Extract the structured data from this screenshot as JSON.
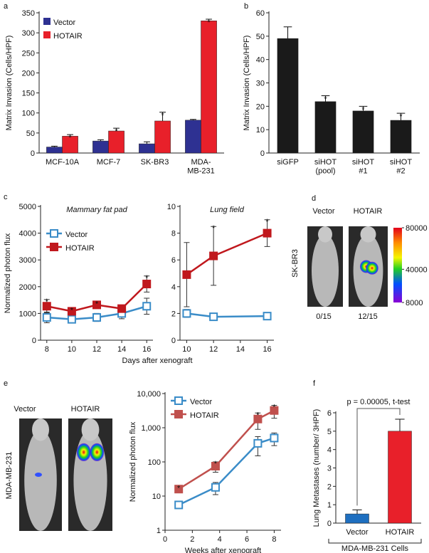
{
  "chart_data": [
    {
      "panel": "a",
      "type": "bar",
      "categories": [
        "MCF-10A",
        "MCF-7",
        "SK-BR3",
        "MDA-\nMB-231"
      ],
      "ylabel": "Matrix Invasion (Cells/HPF)",
      "ylim": [
        0,
        350
      ],
      "yticks": [
        0,
        50,
        100,
        150,
        200,
        250,
        300,
        350
      ],
      "legend": "upper left",
      "series": [
        {
          "name": "Vector",
          "color": "#2e3192",
          "values": [
            15,
            30,
            23,
            82
          ],
          "errors": [
            2,
            3,
            5,
            2
          ]
        },
        {
          "name": "HOTAIR",
          "color": "#e8202a",
          "values": [
            42,
            55,
            80,
            330
          ],
          "errors": [
            4,
            7,
            22,
            4
          ],
          "markers": [
            "*",
            "*",
            "*",
            "*"
          ]
        }
      ]
    },
    {
      "panel": "b",
      "type": "bar",
      "categories": [
        "siGFP",
        "siHOT\n(pool)",
        "siHOT\n#1",
        "siHOT\n#2"
      ],
      "ylabel": "Matrix Invasion (Cells/HPF)",
      "ylim": [
        0,
        60
      ],
      "yticks": [
        0,
        10,
        20,
        30,
        40,
        50,
        60
      ],
      "color": "#1a1a1a",
      "values": [
        49,
        22,
        18,
        14
      ],
      "errors": [
        5,
        2.5,
        2,
        3
      ],
      "markers": [
        null,
        "*",
        "*",
        "*"
      ]
    },
    {
      "panel": "c",
      "type": "line",
      "title": "Mammary fat pad",
      "xlabel": "Days after xenograft",
      "ylabel": "Normalized photon flux",
      "x": [
        8,
        10,
        12,
        14,
        16
      ],
      "xlim": [
        7.5,
        16.5
      ],
      "xticks": [
        8,
        10,
        12,
        14,
        16
      ],
      "ylim": [
        0,
        5000
      ],
      "yticks": [
        0,
        1000,
        2000,
        3000,
        4000,
        5000
      ],
      "legend": "upper left",
      "series": [
        {
          "name": "Vector",
          "color": "#3a8cc8",
          "filled": false,
          "values": [
            850,
            780,
            850,
            1000,
            1270
          ],
          "errors": [
            200,
            100,
            150,
            200,
            300
          ]
        },
        {
          "name": "HOTAIR",
          "color": "#c0181d",
          "filled": true,
          "values": [
            1270,
            1080,
            1320,
            1180,
            2100
          ],
          "errors": [
            250,
            100,
            100,
            80,
            300
          ],
          "markers": [
            "*",
            "*",
            "*",
            null,
            "*"
          ]
        }
      ]
    },
    {
      "type": "line",
      "title": "Lung field",
      "x": [
        10,
        12,
        16
      ],
      "xlim": [
        9.5,
        16.5
      ],
      "xticks": [
        10,
        12,
        14,
        16
      ],
      "ylim": [
        0,
        10
      ],
      "yticks": [
        0,
        2,
        4,
        6,
        8,
        10
      ],
      "series": [
        {
          "color": "#3a8cc8",
          "filled": false,
          "values": [
            2,
            1.75,
            1.8
          ],
          "errors": [
            0.3,
            0.1,
            0.1
          ]
        },
        {
          "color": "#c0181d",
          "filled": true,
          "values": [
            4.9,
            6.3,
            8
          ],
          "errors": [
            2.4,
            2.2,
            1
          ],
          "markers": [
            null,
            "*",
            "*"
          ]
        }
      ]
    },
    {
      "panel": "d",
      "type": "image",
      "labels": [
        {
          "text": "Vector",
          "color": "#2e6db4"
        },
        {
          "text": "HOTAIR",
          "color": "#e8202a"
        }
      ],
      "side_label": "SK-BR3",
      "counts": [
        "0/15",
        "12/15"
      ],
      "colorbar_lim": [
        8000,
        80000
      ],
      "colorbar_ticks": [
        80000,
        40000,
        8000
      ]
    },
    {
      "panel": "e",
      "type": "image",
      "labels": [
        {
          "text": "Vector",
          "color": "#2e6db4"
        },
        {
          "text": "HOTAIR",
          "color": "#e8202a"
        }
      ],
      "side_label": "MDA-MB-231"
    },
    {
      "type": "line",
      "xlabel": "Weeks after xenograft",
      "ylabel": "Normalized photon flux",
      "yscale": "log",
      "x": [
        1,
        3.7,
        6.8,
        8
      ],
      "xlim": [
        0,
        8.5
      ],
      "xticks": [
        0,
        2,
        4,
        6,
        8
      ],
      "ylim": [
        1,
        10000
      ],
      "yticks": [
        1,
        10,
        100,
        {
          "value": 1000,
          "label": "1,000"
        },
        {
          "value": 10000,
          "label": "10,000"
        }
      ],
      "legend": "upper left",
      "series": [
        {
          "name": "Vector",
          "color": "#3a8cc8",
          "filled": false,
          "values": [
            5.5,
            18,
            350,
            500
          ],
          "errors": [
            1,
            7,
            200,
            200
          ]
        },
        {
          "name": "HOTAIR",
          "color": "#c0504d",
          "filled": true,
          "values": [
            16,
            75,
            1800,
            3200
          ],
          "errors": [
            3,
            25,
            900,
            1300
          ],
          "markers": [
            "*",
            "*",
            "*",
            "*"
          ]
        }
      ]
    },
    {
      "panel": "f",
      "type": "bar",
      "categories": [
        "Vector",
        "HOTAIR"
      ],
      "ylabel": "Lung Metastases (number/ 3HPF)",
      "ylim": [
        0,
        6
      ],
      "yticks": [
        0,
        1,
        2,
        3,
        4,
        5,
        6
      ],
      "colors": [
        "#1e6fc0",
        "#e8202a"
      ],
      "values": [
        0.5,
        5
      ],
      "errors": [
        0.22,
        0.65
      ],
      "annotation": "p = 0.00005, t-test",
      "group_label": "MDA-MB-231 Cells"
    }
  ]
}
